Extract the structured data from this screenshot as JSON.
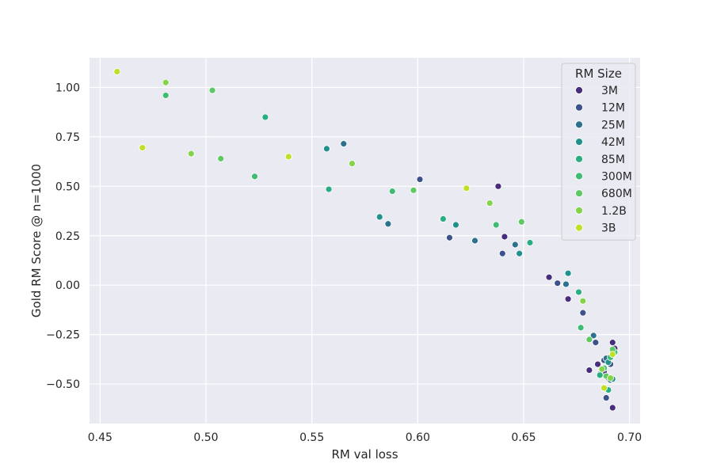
{
  "chart_data": {
    "type": "scatter",
    "xlabel": "RM val loss",
    "ylabel": "Gold RM Score @ n=1000",
    "xlim": [
      0.445,
      0.705
    ],
    "ylim": [
      -0.7,
      1.15
    ],
    "xticks": [
      0.45,
      0.5,
      0.55,
      0.6,
      0.65,
      0.7
    ],
    "xtick_labels": [
      "0.45",
      "0.50",
      "0.55",
      "0.60",
      "0.65",
      "0.70"
    ],
    "yticks": [
      -0.5,
      -0.25,
      0.0,
      0.25,
      0.5,
      0.75,
      1.0
    ],
    "ytick_labels": [
      "−0.50",
      "−0.25",
      "0.00",
      "0.25",
      "0.50",
      "0.75",
      "1.00"
    ],
    "grid": true,
    "legend": {
      "title": "RM Size",
      "placement": "top-right"
    },
    "series": [
      {
        "name": "3M",
        "color": "#472d7b",
        "x": [
          0.638,
          0.641,
          0.662,
          0.671,
          0.681,
          0.685,
          0.688,
          0.69,
          0.692,
          0.693,
          0.692
        ],
        "y": [
          0.5,
          0.245,
          0.04,
          -0.07,
          -0.43,
          -0.4,
          -0.44,
          -0.47,
          -0.29,
          -0.32,
          -0.62
        ]
      },
      {
        "name": "12M",
        "color": "#3b528b",
        "x": [
          0.615,
          0.64,
          0.666,
          0.678,
          0.684,
          0.688,
          0.691,
          0.601,
          0.686,
          0.689
        ],
        "y": [
          0.24,
          0.16,
          0.01,
          -0.14,
          -0.29,
          -0.38,
          -0.4,
          0.535,
          -0.45,
          -0.57
        ]
      },
      {
        "name": "25M",
        "color": "#2c728e",
        "x": [
          0.565,
          0.586,
          0.627,
          0.646,
          0.67,
          0.683,
          0.689,
          0.691
        ],
        "y": [
          0.715,
          0.31,
          0.225,
          0.205,
          0.005,
          -0.255,
          -0.37,
          -0.48
        ]
      },
      {
        "name": "42M",
        "color": "#21918c",
        "x": [
          0.557,
          0.582,
          0.618,
          0.648,
          0.671,
          0.69,
          0.692
        ],
        "y": [
          0.69,
          0.345,
          0.305,
          0.16,
          0.06,
          -0.39,
          -0.475
        ]
      },
      {
        "name": "85M",
        "color": "#28ae80",
        "x": [
          0.528,
          0.558,
          0.612,
          0.653,
          0.676,
          0.686,
          0.69
        ],
        "y": [
          0.85,
          0.485,
          0.335,
          0.215,
          -0.035,
          -0.455,
          -0.53
        ]
      },
      {
        "name": "300M",
        "color": "#3fbc73",
        "x": [
          0.481,
          0.523,
          0.588,
          0.637,
          0.677,
          0.688,
          0.691,
          0.693
        ],
        "y": [
          0.96,
          0.55,
          0.475,
          0.305,
          -0.215,
          -0.42,
          -0.365,
          -0.34
        ]
      },
      {
        "name": "680M",
        "color": "#5ec962",
        "x": [
          0.503,
          0.507,
          0.598,
          0.649,
          0.681,
          0.689,
          0.692
        ],
        "y": [
          0.985,
          0.64,
          0.48,
          0.32,
          -0.275,
          -0.46,
          -0.325
        ]
      },
      {
        "name": "1.2B",
        "color": "#84d44b",
        "x": [
          0.481,
          0.493,
          0.569,
          0.634,
          0.678,
          0.687,
          0.691
        ],
        "y": [
          1.025,
          0.665,
          0.615,
          0.415,
          -0.08,
          -0.425,
          -0.47
        ]
      },
      {
        "name": "3B",
        "color": "#c0df25",
        "x": [
          0.458,
          0.47,
          0.539,
          0.623,
          0.688,
          0.692
        ],
        "y": [
          1.08,
          0.695,
          0.65,
          0.49,
          -0.52,
          -0.35
        ]
      }
    ]
  }
}
